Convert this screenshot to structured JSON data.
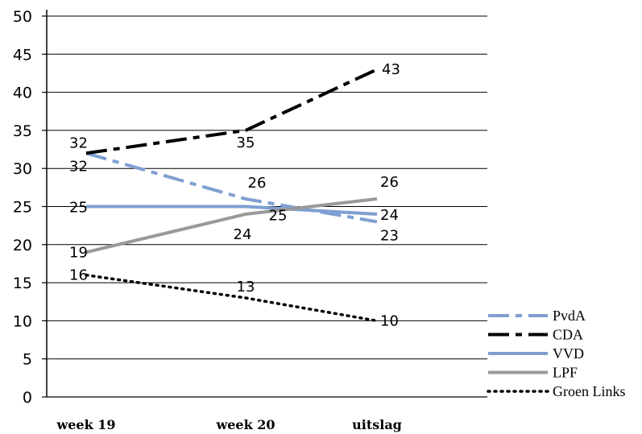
{
  "chart_data": {
    "type": "line",
    "title": "",
    "xlabel": "",
    "ylabel": "",
    "categories": [
      "week 19",
      "week 20",
      "uitslag"
    ],
    "ylim": [
      0,
      50
    ],
    "yticks": [
      0,
      5,
      10,
      15,
      20,
      25,
      30,
      35,
      40,
      45,
      50
    ],
    "grid": true,
    "legend": "right",
    "series": [
      {
        "name": "PvdA",
        "values": [
          32,
          26,
          23
        ],
        "labels": [
          "32",
          "26",
          "23"
        ],
        "color": "#7f9fd1",
        "style": "dashdot"
      },
      {
        "name": "CDA",
        "values": [
          32,
          35,
          43
        ],
        "labels": [
          "32",
          "35",
          "43"
        ],
        "color": "#000000",
        "style": "dashdot"
      },
      {
        "name": "VVD",
        "values": [
          25,
          25,
          24
        ],
        "labels": [
          "25",
          "25",
          "24"
        ],
        "color": "#7f9fd1",
        "style": "solid"
      },
      {
        "name": "LPF",
        "values": [
          19,
          24,
          26
        ],
        "labels": [
          "19",
          "24",
          "26"
        ],
        "color": "#999999",
        "style": "solid"
      },
      {
        "name": "Groen Links",
        "values": [
          16,
          13,
          10
        ],
        "labels": [
          "16",
          "13",
          "10"
        ],
        "color": "#000000",
        "style": "dotted"
      }
    ]
  }
}
